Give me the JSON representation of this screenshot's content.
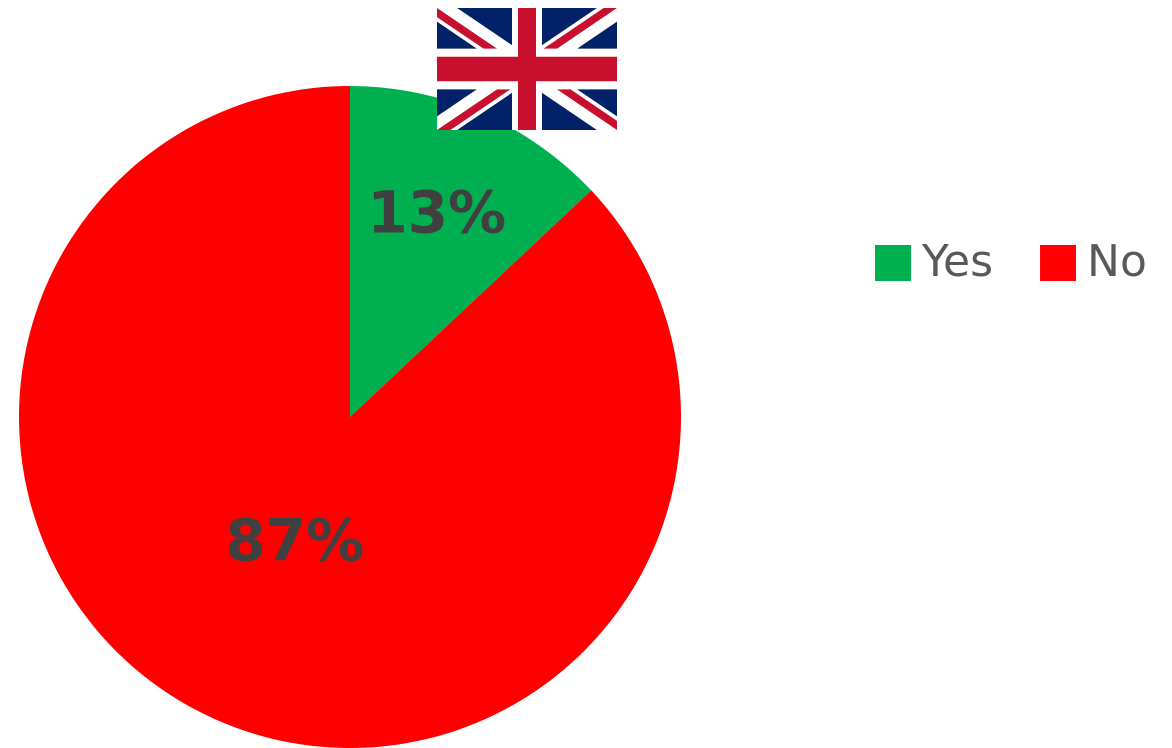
{
  "chart_data": {
    "type": "pie",
    "categories": [
      "Yes",
      "No"
    ],
    "values": [
      13,
      87
    ],
    "value_labels": [
      "13%",
      "87%"
    ],
    "colors": [
      "#00b050",
      "#ff0000"
    ],
    "legend": "right"
  }
}
